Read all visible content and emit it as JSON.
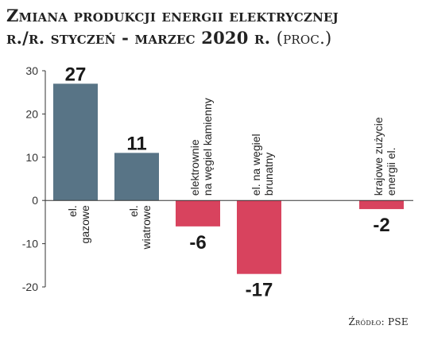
{
  "chart_data": {
    "type": "bar",
    "title": "Zmiana produkcji energii elektrycznej",
    "subtitle": "r./r. styczeń - marzec 2020 r.",
    "unit": "(proc.)",
    "categories": [
      [
        "el.",
        "gazowe"
      ],
      [
        "el.",
        "wiatrowe"
      ],
      [
        "elektrownie",
        "na węgiel kamienny"
      ],
      [
        "el. na węgiel",
        "brunatny"
      ],
      [],
      [
        "krajowe zużycie",
        "energii el."
      ]
    ],
    "values": [
      27,
      11,
      -6,
      -17,
      null,
      -2
    ],
    "value_labels": [
      "27",
      "11",
      "-6",
      "-17",
      "",
      "-2"
    ],
    "yticks": [
      30,
      20,
      10,
      0,
      -10,
      -20
    ],
    "ylim": [
      -20,
      30
    ],
    "grid": false,
    "colors": {
      "positive": "#587486",
      "negative": "#d8435e",
      "axis": "#333333"
    }
  },
  "source": "Źródło: PSE"
}
